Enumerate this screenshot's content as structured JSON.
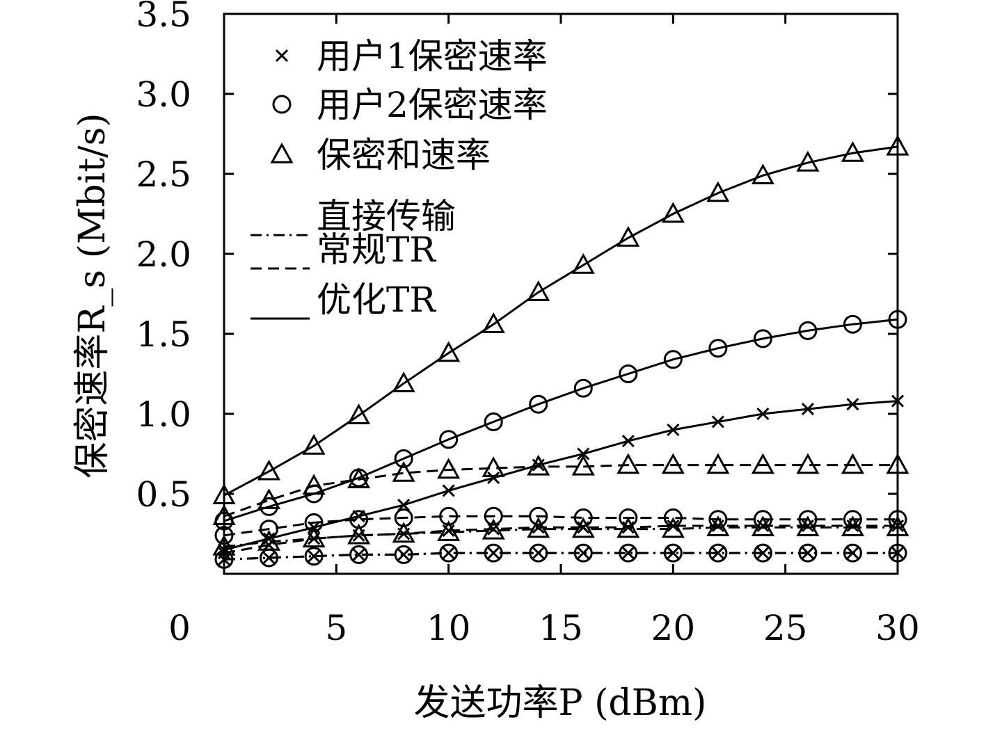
{
  "chart_data": {
    "type": "line",
    "xlabel": "发送功率P (dBm)",
    "ylabel": "保密速率R_s (Mbit/s)",
    "xlim": [
      0,
      30
    ],
    "ylim": [
      0,
      3.5
    ],
    "x_tick_labels": [
      "0",
      "5",
      "10",
      "15",
      "20",
      "25",
      "30"
    ],
    "y_tick_labels": [
      "0.5",
      "1.0",
      "1.5",
      "2.0",
      "2.5",
      "3.0",
      "3.5"
    ],
    "grid": false,
    "legend_position": "top-left",
    "legend": {
      "markers": [
        {
          "symbol": "x",
          "label": "用户1保密速率"
        },
        {
          "symbol": "circle",
          "label": "用户2保密速率"
        },
        {
          "symbol": "triangle",
          "label": "保密和速率"
        }
      ],
      "lines": [
        {
          "style": "dashdot",
          "label": "直接传输"
        },
        {
          "style": "dashed",
          "label": "常规TR"
        },
        {
          "style": "solid",
          "label": "优化TR"
        }
      ]
    },
    "x": [
      0,
      2,
      4,
      6,
      8,
      10,
      12,
      14,
      16,
      18,
      20,
      22,
      24,
      26,
      28,
      30
    ],
    "series": [
      {
        "name": "用户1保密速率",
        "marker": "x",
        "linestyle": "solid",
        "values": [
          0.15,
          0.22,
          0.29,
          0.36,
          0.43,
          0.52,
          0.6,
          0.68,
          0.75,
          0.83,
          0.9,
          0.95,
          1.0,
          1.03,
          1.06,
          1.08
        ]
      },
      {
        "name": "用户2保密速率",
        "marker": "circle",
        "linestyle": "solid",
        "values": [
          0.33,
          0.42,
          0.5,
          0.6,
          0.72,
          0.84,
          0.95,
          1.06,
          1.16,
          1.25,
          1.34,
          1.41,
          1.47,
          1.52,
          1.56,
          1.59
        ]
      },
      {
        "name": "保密和速率",
        "marker": "triangle",
        "linestyle": "solid",
        "values": [
          0.49,
          0.64,
          0.8,
          0.99,
          1.19,
          1.38,
          1.56,
          1.76,
          1.93,
          2.1,
          2.25,
          2.38,
          2.49,
          2.57,
          2.63,
          2.67
        ]
      },
      {
        "name": "用户1保密速率",
        "marker": "x",
        "linestyle": "dashed",
        "values": [
          0.13,
          0.18,
          0.22,
          0.24,
          0.25,
          0.27,
          0.28,
          0.29,
          0.29,
          0.29,
          0.3,
          0.3,
          0.3,
          0.3,
          0.3,
          0.3
        ]
      },
      {
        "name": "用户2保密速率",
        "marker": "circle",
        "linestyle": "dashed",
        "values": [
          0.24,
          0.28,
          0.32,
          0.34,
          0.35,
          0.36,
          0.36,
          0.36,
          0.35,
          0.35,
          0.35,
          0.34,
          0.34,
          0.34,
          0.34,
          0.34
        ]
      },
      {
        "name": "保密和速率",
        "marker": "triangle",
        "linestyle": "dashed",
        "values": [
          0.36,
          0.46,
          0.55,
          0.59,
          0.63,
          0.65,
          0.66,
          0.67,
          0.67,
          0.68,
          0.68,
          0.68,
          0.68,
          0.68,
          0.68,
          0.68
        ]
      },
      {
        "name": "用户1保密速率",
        "marker": "x",
        "linestyle": "dashdot",
        "values": [
          0.09,
          0.1,
          0.11,
          0.12,
          0.12,
          0.13,
          0.13,
          0.13,
          0.13,
          0.13,
          0.13,
          0.13,
          0.13,
          0.13,
          0.13,
          0.13
        ]
      },
      {
        "name": "用户2保密速率",
        "marker": "circle",
        "linestyle": "dashdot",
        "values": [
          0.09,
          0.1,
          0.11,
          0.12,
          0.12,
          0.13,
          0.13,
          0.13,
          0.13,
          0.13,
          0.13,
          0.13,
          0.13,
          0.13,
          0.13,
          0.13
        ]
      },
      {
        "name": "保密和速率",
        "marker": "triangle",
        "linestyle": "dashdot",
        "values": [
          0.17,
          0.2,
          0.22,
          0.24,
          0.25,
          0.26,
          0.27,
          0.28,
          0.28,
          0.28,
          0.28,
          0.29,
          0.29,
          0.29,
          0.29,
          0.29
        ]
      }
    ]
  }
}
